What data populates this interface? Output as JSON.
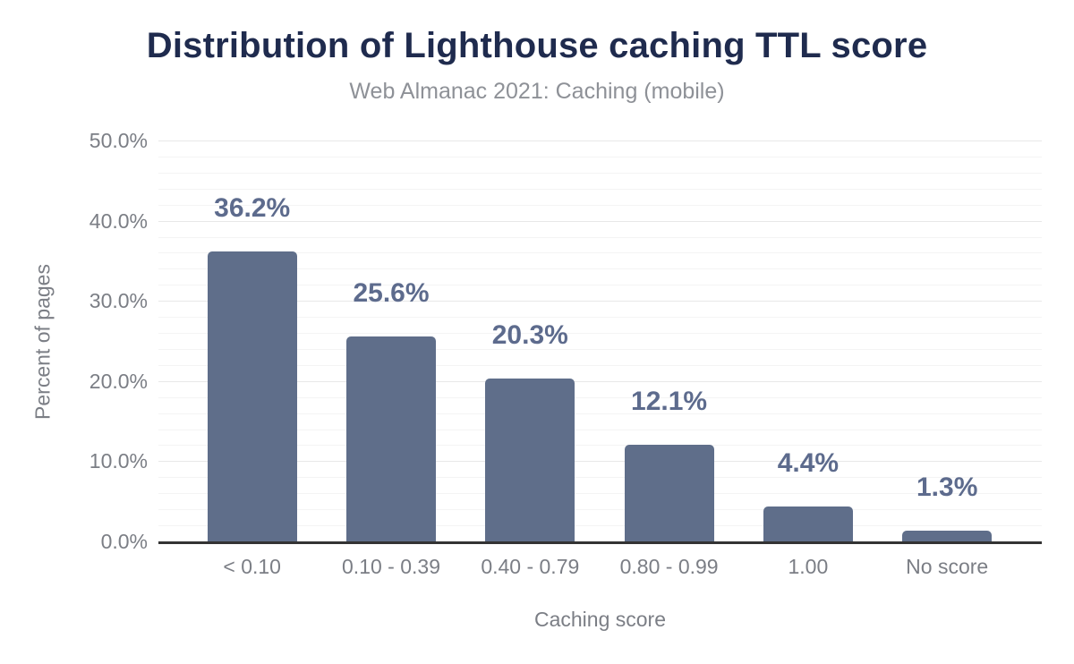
{
  "chart_data": {
    "type": "bar",
    "title": "Distribution of Lighthouse caching TTL score",
    "subtitle": "Web Almanac 2021: Caching (mobile)",
    "xlabel": "Caching score",
    "ylabel": "Percent of pages",
    "categories": [
      "< 0.10",
      "0.10 - 0.39",
      "0.40 - 0.79",
      "0.80 - 0.99",
      "1.00",
      "No score"
    ],
    "values": [
      36.2,
      25.6,
      20.3,
      12.1,
      4.4,
      1.3
    ],
    "value_labels": [
      "36.2%",
      "25.6%",
      "20.3%",
      "12.1%",
      "4.4%",
      "1.3%"
    ],
    "y_ticks": [
      "0.0%",
      "10.0%",
      "20.0%",
      "30.0%",
      "40.0%",
      "50.0%"
    ],
    "ylim": [
      0,
      50
    ],
    "y_major_step": 10,
    "y_minor_step": 2,
    "grid": "on",
    "legend": "none",
    "colors": {
      "background": "#ffffff",
      "bar": "#5f6e8a",
      "value_label": "#5d6b8d",
      "title": "#1f2b4e",
      "subtitle": "#8e9197",
      "axis_text": "#7b7e85",
      "axis_line": "#333333",
      "grid_major": "#e8e8e8",
      "grid_minor": "#f4f4f4"
    }
  }
}
